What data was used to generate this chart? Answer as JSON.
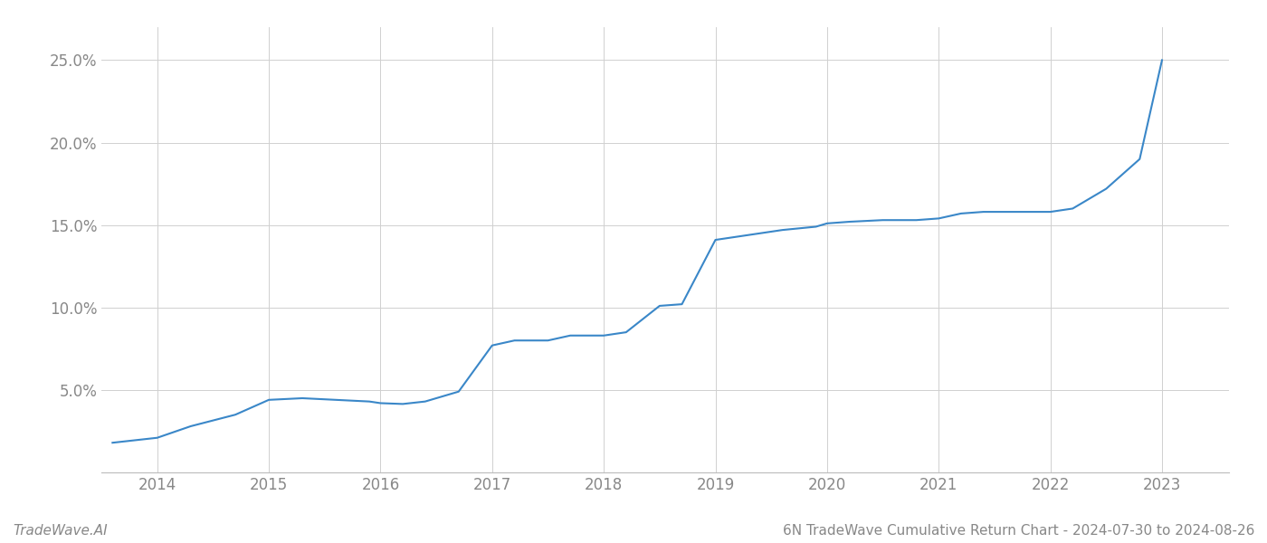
{
  "title": "6N TradeWave Cumulative Return Chart - 2024-07-30 to 2024-08-26",
  "watermark": "TradeWave.AI",
  "line_color": "#3a87c8",
  "background_color": "#ffffff",
  "grid_color": "#d0d0d0",
  "x_values": [
    2013.6,
    2014.0,
    2014.3,
    2014.7,
    2015.0,
    2015.3,
    2015.6,
    2015.9,
    2016.0,
    2016.2,
    2016.4,
    2016.7,
    2017.0,
    2017.2,
    2017.5,
    2017.7,
    2018.0,
    2018.2,
    2018.5,
    2018.7,
    2019.0,
    2019.2,
    2019.4,
    2019.6,
    2019.9,
    2020.0,
    2020.2,
    2020.5,
    2020.8,
    2021.0,
    2021.2,
    2021.4,
    2021.7,
    2022.0,
    2022.2,
    2022.5,
    2022.8,
    2023.0
  ],
  "y_values": [
    1.8,
    2.1,
    2.8,
    3.5,
    4.4,
    4.5,
    4.4,
    4.3,
    4.2,
    4.15,
    4.3,
    4.9,
    7.7,
    8.0,
    8.0,
    8.3,
    8.3,
    8.5,
    10.1,
    10.2,
    14.1,
    14.3,
    14.5,
    14.7,
    14.9,
    15.1,
    15.2,
    15.3,
    15.3,
    15.4,
    15.7,
    15.8,
    15.8,
    15.8,
    16.0,
    17.2,
    19.0,
    25.0
  ],
  "xlim": [
    2013.5,
    2023.6
  ],
  "ylim": [
    0,
    27
  ],
  "yticks": [
    5.0,
    10.0,
    15.0,
    20.0,
    25.0
  ],
  "ytick_labels": [
    "5.0%",
    "10.0%",
    "15.0%",
    "20.0%",
    "25.0%"
  ],
  "xticks": [
    2014,
    2015,
    2016,
    2017,
    2018,
    2019,
    2020,
    2021,
    2022,
    2023
  ],
  "xtick_labels": [
    "2014",
    "2015",
    "2016",
    "2017",
    "2018",
    "2019",
    "2020",
    "2021",
    "2022",
    "2023"
  ],
  "line_width": 1.5,
  "title_fontsize": 11,
  "tick_fontsize": 12,
  "watermark_fontsize": 11,
  "tick_color": "#888888",
  "label_color": "#888888"
}
